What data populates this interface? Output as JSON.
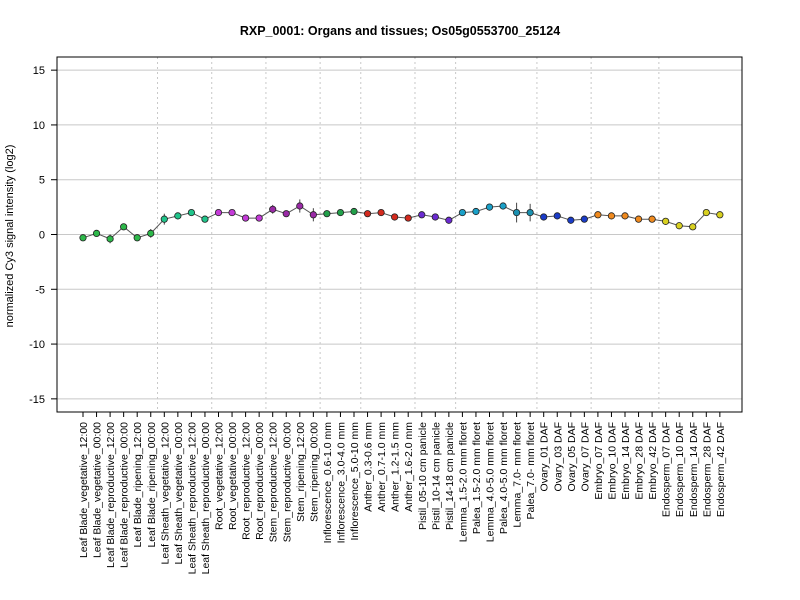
{
  "chart_data": {
    "type": "line",
    "title": "RXP_0001: Organs and tissues; Os05g0553700_25124",
    "xlabel": "",
    "ylabel": "normalized Cy3 signal intensity (log2)",
    "ylim": [
      -16.2,
      16.2
    ],
    "yticks": [
      -15,
      -10,
      -5,
      0,
      5,
      10,
      15
    ],
    "grid": true,
    "categories": [
      "Leaf Blade_vegetative_12:00",
      "Leaf Blade_vegetative_00:00",
      "Leaf Blade_reproductive_12:00",
      "Leaf Blade_reproductive_00:00",
      "Leaf Blade_ripening_12:00",
      "Leaf Blade_ripening_00:00",
      "Leaf Sheath_vegetative_12:00",
      "Leaf Sheath_vegetative_00:00",
      "Leaf Sheath_reproductive_12:00",
      "Leaf Sheath_reproductive_00:00",
      "Root_vegetative_12:00",
      "Root_vegetative_00:00",
      "Root_reproductive_12:00",
      "Root_reproductive_00:00",
      "Stem_reproductive_12:00",
      "Stem_reproductive_00:00",
      "Stem_ripening_12:00",
      "Stem_ripening_00:00",
      "Inflorescence_0.6-1.0 mm",
      "Inflorescence_3.0-4.0 mm",
      "Inflorescence_5.0-10 mm",
      "Anther_0.3-0.6 mm",
      "Anther_0.7-1.0 mm",
      "Anther_1.2-1.5 mm",
      "Anther_1.6-2.0 mm",
      "Pistil_05-10 cm panicle",
      "Pistil_10-14 cm panicle",
      "Pistil_14-18 cm panicle",
      "Lemma_1.5-2.0 mm floret",
      "Palea_1.5-2.0 mm floret",
      "Lemma_4.0-5.0 mm floret",
      "Palea_4.0-5.0 mm floret",
      "Lemma_7.0- mm floret",
      "Palea_7.0- mm floret",
      "Ovary_01 DAF",
      "Ovary_03 DAF",
      "Ovary_05 DAF",
      "Ovary_07 DAF",
      "Embryo_07 DAF",
      "Embryo_10 DAF",
      "Embryo_14 DAF",
      "Embryo_28 DAF",
      "Embryo_42 DAF",
      "Endosperm_07 DAF",
      "Endosperm_10 DAF",
      "Endosperm_14 DAF",
      "Endosperm_28 DAF",
      "Endosperm_42 DAF"
    ],
    "values": [
      -0.3,
      0.1,
      -0.4,
      0.7,
      -0.3,
      0.1,
      1.4,
      1.7,
      2.0,
      1.4,
      2.0,
      2.0,
      1.5,
      1.5,
      2.3,
      1.9,
      2.6,
      1.8,
      1.9,
      2.0,
      2.1,
      1.9,
      2.0,
      1.6,
      1.5,
      1.8,
      1.6,
      1.3,
      2.0,
      2.1,
      2.5,
      2.6,
      2.0,
      2.0,
      1.6,
      1.7,
      1.3,
      1.4,
      1.8,
      1.7,
      1.7,
      1.4,
      1.4,
      1.2,
      0.8,
      0.7,
      2.0,
      1.8
    ],
    "errors": [
      0.2,
      0.1,
      0.4,
      0.2,
      0.3,
      0.4,
      0.5,
      0.2,
      0.2,
      0.2,
      0.2,
      0.2,
      0.2,
      0.2,
      0.4,
      0.2,
      0.6,
      0.6,
      0.3,
      0.2,
      0.3,
      0.2,
      0.2,
      0.3,
      0.2,
      0.2,
      0.2,
      0.3,
      0.2,
      0.2,
      0.2,
      0.3,
      0.9,
      0.8,
      0.2,
      0.2,
      0.3,
      0.2,
      0.2,
      0.2,
      0.2,
      0.2,
      0.2,
      0.2,
      0.2,
      0.1,
      0.2,
      0.2
    ],
    "colors": [
      "#2db84a",
      "#2db84a",
      "#2db84a",
      "#2db84a",
      "#2db84a",
      "#2db84a",
      "#20c48a",
      "#20c48a",
      "#20c48a",
      "#20c48a",
      "#c43ad8",
      "#c43ad8",
      "#c43ad8",
      "#c43ad8",
      "#9a2aa6",
      "#9a2aa6",
      "#9a2aa6",
      "#9a2aa6",
      "#22a04a",
      "#22a04a",
      "#22a04a",
      "#d42a1e",
      "#d42a1e",
      "#d42a1e",
      "#d42a1e",
      "#6a2ad0",
      "#6a2ad0",
      "#6a2ad0",
      "#1aa0c8",
      "#1aa0c8",
      "#1aa0c8",
      "#1aa0c8",
      "#1a90b0",
      "#1a90b0",
      "#1a3cc8",
      "#1a3cc8",
      "#1a3cc8",
      "#1a3cc8",
      "#f08a1e",
      "#f08a1e",
      "#f08a1e",
      "#f08a1e",
      "#f08a1e",
      "#d8d020",
      "#d8d020",
      "#d8d020",
      "#d8d020",
      "#d8d020"
    ],
    "group_boundaries_after": [
      5,
      9,
      13,
      17,
      20,
      24,
      27,
      33,
      37,
      42
    ],
    "line_color": "#555555",
    "axis_color": "#000000",
    "grid_color": "#c8c8c8"
  }
}
